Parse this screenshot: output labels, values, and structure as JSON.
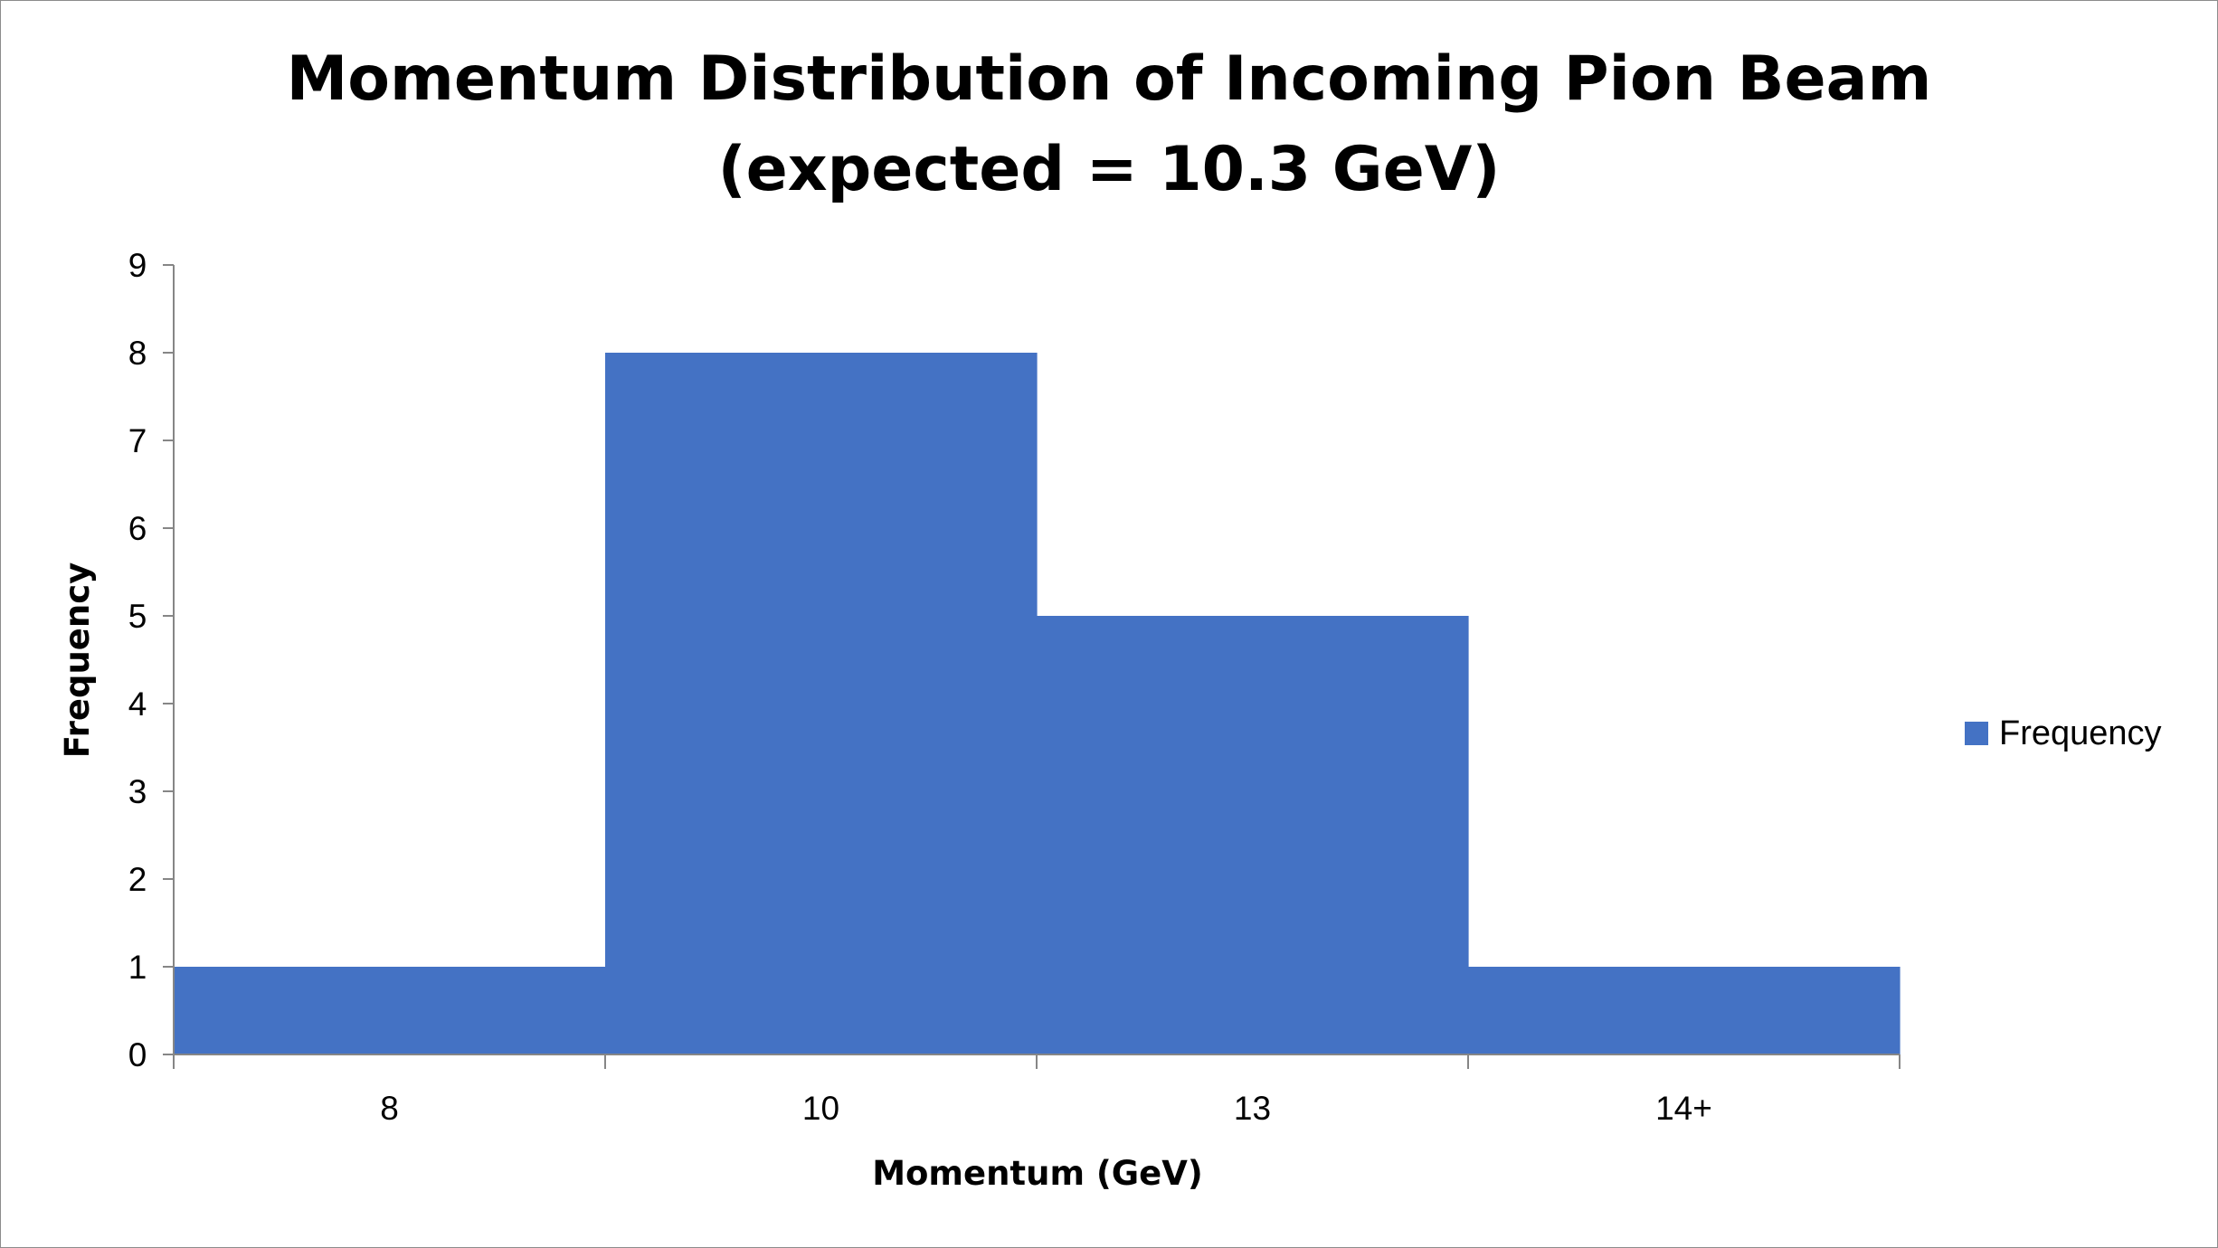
{
  "chart_data": {
    "type": "bar",
    "title_lines": [
      "Momentum Distribution of Incoming Pion Beam",
      "(expected = 10.3 GeV)"
    ],
    "xlabel": "Momentum (GeV)",
    "ylabel": "Frequency",
    "categories": [
      "8",
      "10",
      "13",
      "14+"
    ],
    "series": [
      {
        "name": "Frequency",
        "values": [
          1,
          8,
          5,
          1
        ],
        "color": "#4472C4"
      }
    ],
    "ylim": [
      0,
      9
    ],
    "y_ticks": [
      0,
      1,
      2,
      3,
      4,
      5,
      6,
      7,
      8,
      9
    ],
    "grid": false,
    "legend_position": "right"
  }
}
